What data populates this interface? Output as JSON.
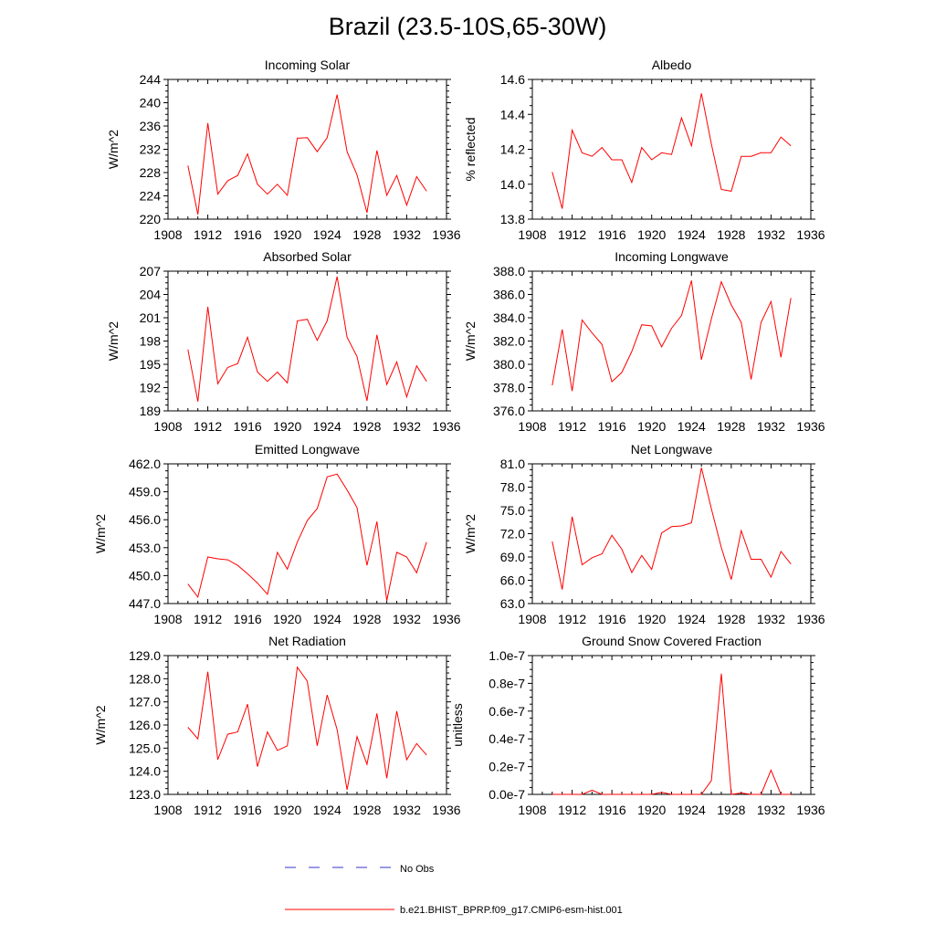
{
  "title": "Brazil (23.5-10S,65-30W)",
  "legend": {
    "items": [
      {
        "label": "No Obs",
        "color": "#3333cc",
        "style": "dashed"
      },
      {
        "label": "b.e21.BHIST_BPRP.f09_g17.CMIP6-esm-hist.001",
        "color": "#ff0000",
        "style": "solid"
      }
    ]
  },
  "chart_data": [
    {
      "type": "line",
      "title": "Incoming Solar",
      "ylabel": "W/m^2",
      "xlabel": "",
      "xlim": [
        1908,
        1936
      ],
      "xticks": [
        "1908",
        "1912",
        "1916",
        "1920",
        "1924",
        "1928",
        "1932",
        "1936"
      ],
      "ylim": [
        220,
        244
      ],
      "yticks": [
        "220",
        "224",
        "228",
        "232",
        "236",
        "240",
        "244"
      ],
      "series": [
        {
          "name": "b.e21.BHIST_BPRP.f09_g17.CMIP6-esm-hist.001",
          "color": "#ff0000",
          "x": [
            1910,
            1911,
            1912,
            1913,
            1914,
            1915,
            1916,
            1917,
            1918,
            1919,
            1920,
            1921,
            1922,
            1923,
            1924,
            1925,
            1926,
            1927,
            1928,
            1929,
            1930,
            1931,
            1932,
            1933,
            1934
          ],
          "y": [
            229.2,
            220.8,
            236.5,
            224.3,
            226.6,
            227.5,
            231.2,
            226.0,
            224.3,
            226.0,
            224.1,
            233.9,
            234.0,
            231.6,
            234.0,
            241.4,
            231.6,
            227.6,
            221.1,
            231.8,
            224.1,
            227.5,
            222.4,
            227.3,
            224.8
          ]
        }
      ]
    },
    {
      "type": "line",
      "title": "Albedo",
      "ylabel": "% reflected",
      "xlabel": "",
      "xlim": [
        1908,
        1936
      ],
      "xticks": [
        "1908",
        "1912",
        "1916",
        "1920",
        "1924",
        "1928",
        "1932",
        "1936"
      ],
      "ylim": [
        13.8,
        14.6
      ],
      "yticks": [
        "13.8",
        "14.0",
        "14.2",
        "14.4",
        "14.6"
      ],
      "series": [
        {
          "name": "b.e21.BHIST_BPRP.f09_g17.CMIP6-esm-hist.001",
          "color": "#ff0000",
          "x": [
            1910,
            1911,
            1912,
            1913,
            1914,
            1915,
            1916,
            1917,
            1918,
            1919,
            1920,
            1921,
            1922,
            1923,
            1924,
            1925,
            1926,
            1927,
            1928,
            1929,
            1930,
            1931,
            1932,
            1933,
            1934
          ],
          "y": [
            14.07,
            13.86,
            14.31,
            14.18,
            14.16,
            14.21,
            14.14,
            14.14,
            14.01,
            14.21,
            14.14,
            14.18,
            14.17,
            14.38,
            14.22,
            14.52,
            14.23,
            13.97,
            13.96,
            14.16,
            14.16,
            14.18,
            14.18,
            14.27,
            14.22
          ]
        }
      ]
    },
    {
      "type": "line",
      "title": "Absorbed Solar",
      "ylabel": "W/m^2",
      "xlabel": "",
      "xlim": [
        1908,
        1936
      ],
      "xticks": [
        "1908",
        "1912",
        "1916",
        "1920",
        "1924",
        "1928",
        "1932",
        "1936"
      ],
      "ylim": [
        189,
        207
      ],
      "yticks": [
        "189",
        "192",
        "195",
        "198",
        "201",
        "204",
        "207"
      ],
      "series": [
        {
          "name": "b.e21.BHIST_BPRP.f09_g17.CMIP6-esm-hist.001",
          "color": "#ff0000",
          "x": [
            1910,
            1911,
            1912,
            1913,
            1914,
            1915,
            1916,
            1917,
            1918,
            1919,
            1920,
            1921,
            1922,
            1923,
            1924,
            1925,
            1926,
            1927,
            1928,
            1929,
            1930,
            1931,
            1932,
            1933,
            1934
          ],
          "y": [
            196.9,
            190.2,
            202.4,
            192.5,
            194.6,
            195.1,
            198.5,
            194.0,
            192.8,
            194.0,
            192.6,
            200.6,
            200.8,
            198.1,
            200.6,
            206.3,
            198.5,
            196.0,
            190.3,
            198.8,
            192.4,
            195.3,
            190.8,
            194.8,
            192.8
          ]
        }
      ]
    },
    {
      "type": "line",
      "title": "Incoming Longwave",
      "ylabel": "W/m^2",
      "xlabel": "",
      "xlim": [
        1908,
        1936
      ],
      "xticks": [
        "1908",
        "1912",
        "1916",
        "1920",
        "1924",
        "1928",
        "1932",
        "1936"
      ],
      "ylim": [
        376.0,
        388.0
      ],
      "yticks": [
        "376.0",
        "378.0",
        "380.0",
        "382.0",
        "384.0",
        "386.0",
        "388.0"
      ],
      "series": [
        {
          "name": "b.e21.BHIST_BPRP.f09_g17.CMIP6-esm-hist.001",
          "color": "#ff0000",
          "x": [
            1910,
            1911,
            1912,
            1913,
            1914,
            1915,
            1916,
            1917,
            1918,
            1919,
            1920,
            1921,
            1922,
            1923,
            1924,
            1925,
            1926,
            1927,
            1928,
            1929,
            1930,
            1931,
            1932,
            1933,
            1934
          ],
          "y": [
            378.2,
            383.0,
            377.7,
            383.8,
            382.7,
            381.7,
            378.5,
            379.3,
            381.1,
            383.4,
            383.3,
            381.5,
            383.1,
            384.2,
            387.2,
            380.4,
            383.9,
            387.1,
            385.1,
            383.6,
            378.7,
            383.6,
            385.4,
            380.6,
            385.7
          ]
        }
      ]
    },
    {
      "type": "line",
      "title": "Emitted Longwave",
      "ylabel": "W/m^2",
      "xlabel": "",
      "xlim": [
        1908,
        1936
      ],
      "xticks": [
        "1908",
        "1912",
        "1916",
        "1920",
        "1924",
        "1928",
        "1932",
        "1936"
      ],
      "ylim": [
        447.0,
        462.0
      ],
      "yticks": [
        "447.0",
        "450.0",
        "453.0",
        "456.0",
        "459.0",
        "462.0"
      ],
      "series": [
        {
          "name": "b.e21.BHIST_BPRP.f09_g17.CMIP6-esm-hist.001",
          "color": "#ff0000",
          "x": [
            1910,
            1911,
            1912,
            1913,
            1914,
            1915,
            1916,
            1917,
            1918,
            1919,
            1920,
            1921,
            1922,
            1923,
            1924,
            1925,
            1926,
            1927,
            1928,
            1929,
            1930,
            1931,
            1932,
            1933,
            1934
          ],
          "y": [
            449.1,
            447.7,
            452.0,
            451.8,
            451.7,
            451.1,
            450.2,
            449.2,
            448.0,
            452.5,
            450.7,
            453.6,
            455.9,
            457.2,
            460.6,
            460.9,
            459.2,
            457.3,
            451.1,
            455.8,
            447.3,
            452.5,
            452.0,
            450.3,
            453.6
          ]
        }
      ]
    },
    {
      "type": "line",
      "title": "Net Longwave",
      "ylabel": "W/m^2",
      "xlabel": "",
      "xlim": [
        1908,
        1936
      ],
      "xticks": [
        "1908",
        "1912",
        "1916",
        "1920",
        "1924",
        "1928",
        "1932",
        "1936"
      ],
      "ylim": [
        63.0,
        81.0
      ],
      "yticks": [
        "63.0",
        "66.0",
        "69.0",
        "72.0",
        "75.0",
        "78.0",
        "81.0"
      ],
      "series": [
        {
          "name": "b.e21.BHIST_BPRP.f09_g17.CMIP6-esm-hist.001",
          "color": "#ff0000",
          "x": [
            1910,
            1911,
            1912,
            1913,
            1914,
            1915,
            1916,
            1917,
            1918,
            1919,
            1920,
            1921,
            1922,
            1923,
            1924,
            1925,
            1926,
            1927,
            1928,
            1929,
            1930,
            1931,
            1932,
            1933,
            1934
          ],
          "y": [
            71.0,
            64.8,
            74.2,
            68.0,
            68.9,
            69.4,
            71.8,
            70.0,
            67.0,
            69.2,
            67.4,
            72.1,
            72.9,
            73.0,
            73.4,
            80.5,
            75.2,
            70.2,
            66.1,
            72.4,
            68.7,
            68.7,
            66.4,
            69.7,
            68.1
          ]
        }
      ]
    },
    {
      "type": "line",
      "title": "Net Radiation",
      "ylabel": "W/m^2",
      "xlabel": "",
      "xlim": [
        1908,
        1936
      ],
      "xticks": [
        "1908",
        "1912",
        "1916",
        "1920",
        "1924",
        "1928",
        "1932",
        "1936"
      ],
      "ylim": [
        123.0,
        129.0
      ],
      "yticks": [
        "123.0",
        "124.0",
        "125.0",
        "126.0",
        "127.0",
        "128.0",
        "129.0"
      ],
      "series": [
        {
          "name": "b.e21.BHIST_BPRP.f09_g17.CMIP6-esm-hist.001",
          "color": "#ff0000",
          "x": [
            1910,
            1911,
            1912,
            1913,
            1914,
            1915,
            1916,
            1917,
            1918,
            1919,
            1920,
            1921,
            1922,
            1923,
            1924,
            1925,
            1926,
            1927,
            1928,
            1929,
            1930,
            1931,
            1932,
            1933,
            1934
          ],
          "y": [
            125.9,
            125.4,
            128.3,
            124.5,
            125.6,
            125.7,
            126.9,
            124.2,
            125.7,
            124.9,
            125.1,
            128.5,
            127.9,
            125.1,
            127.3,
            125.8,
            123.2,
            125.5,
            124.3,
            126.5,
            123.7,
            126.6,
            124.5,
            125.2,
            124.7
          ]
        }
      ]
    },
    {
      "type": "line",
      "title": "Ground Snow Covered Fraction",
      "ylabel": "unitless",
      "xlabel": "",
      "xlim": [
        1908,
        1936
      ],
      "xticks": [
        "1908",
        "1912",
        "1916",
        "1920",
        "1924",
        "1928",
        "1932",
        "1936"
      ],
      "ylim": [
        0.0,
        1e-07
      ],
      "yticks": [
        "0.0e-7",
        "0.2e-7",
        "0.4e-7",
        "0.6e-7",
        "0.8e-7",
        "1.0e-7"
      ],
      "series": [
        {
          "name": "b.e21.BHIST_BPRP.f09_g17.CMIP6-esm-hist.001",
          "color": "#ff0000",
          "x": [
            1910,
            1911,
            1912,
            1913,
            1914,
            1915,
            1916,
            1917,
            1918,
            1919,
            1920,
            1921,
            1922,
            1923,
            1924,
            1925,
            1926,
            1927,
            1928,
            1929,
            1930,
            1931,
            1932,
            1933,
            1934
          ],
          "y": [
            0,
            0,
            0,
            0,
            3e-09,
            0,
            0,
            0,
            0,
            0,
            0,
            1.5e-09,
            0,
            0,
            0,
            0,
            1e-08,
            8.7e-08,
            0,
            1e-09,
            0,
            0,
            1.75e-08,
            0,
            0
          ]
        }
      ]
    }
  ]
}
